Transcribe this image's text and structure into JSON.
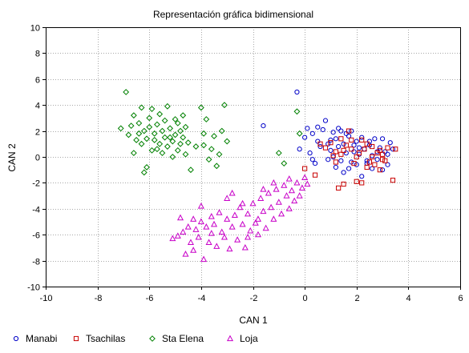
{
  "chart_data": {
    "type": "scatter",
    "title": "Representación gráfica bidimensional",
    "xlabel": "CAN 1",
    "ylabel": "CAN 2",
    "xlim": [
      -10,
      6
    ],
    "ylim": [
      -10,
      10
    ],
    "x_ticks": [
      -10,
      -8,
      -6,
      -4,
      -2,
      0,
      2,
      4,
      6
    ],
    "y_ticks": [
      -10,
      -8,
      -6,
      -4,
      -2,
      0,
      2,
      4,
      6,
      8,
      10
    ],
    "grid": true,
    "legend_position": "bottom",
    "series": [
      {
        "name": "Manabi",
        "marker": "circle",
        "color": "#0000c8",
        "points": [
          [
            -0.3,
            5.0
          ],
          [
            -1.6,
            2.4
          ],
          [
            0.1,
            2.2
          ],
          [
            0.3,
            1.8
          ],
          [
            0.5,
            1.2
          ],
          [
            0.7,
            2.1
          ],
          [
            0.8,
            2.8
          ],
          [
            0.9,
            1.0
          ],
          [
            1.0,
            0.5
          ],
          [
            1.1,
            1.9
          ],
          [
            1.2,
            1.4
          ],
          [
            1.3,
            0.8
          ],
          [
            1.4,
            2.0
          ],
          [
            1.5,
            1.0
          ],
          [
            1.6,
            0.3
          ],
          [
            1.7,
            1.6
          ],
          [
            1.8,
            2.0
          ],
          [
            1.9,
            0.9
          ],
          [
            2.0,
            1.2
          ],
          [
            2.1,
            0.2
          ],
          [
            2.2,
            1.5
          ],
          [
            2.3,
            0.6
          ],
          [
            2.4,
            -0.5
          ],
          [
            2.5,
            0.9
          ],
          [
            2.6,
            0.1
          ],
          [
            2.7,
            1.4
          ],
          [
            2.8,
            -0.2
          ],
          [
            2.9,
            0.7
          ],
          [
            3.0,
            -1.0
          ],
          [
            3.1,
            0.4
          ],
          [
            3.2,
            -0.6
          ],
          [
            3.3,
            1.1
          ],
          [
            3.4,
            0.6
          ],
          [
            0.2,
            0.3
          ],
          [
            0.4,
            -0.5
          ],
          [
            0.6,
            0.8
          ],
          [
            0.9,
            -0.2
          ],
          [
            1.1,
            0.0
          ],
          [
            1.2,
            -0.8
          ],
          [
            1.4,
            -0.3
          ],
          [
            1.5,
            -1.2
          ],
          [
            1.7,
            -0.9
          ],
          [
            1.8,
            -0.4
          ],
          [
            2.0,
            -0.6
          ],
          [
            2.2,
            -1.5
          ],
          [
            2.4,
            -0.3
          ],
          [
            2.6,
            -0.9
          ],
          [
            3.0,
            1.4
          ],
          [
            -0.2,
            0.6
          ],
          [
            0.0,
            1.5
          ],
          [
            0.5,
            2.3
          ],
          [
            1.0,
            1.3
          ],
          [
            1.3,
            2.2
          ],
          [
            1.6,
            1.8
          ],
          [
            1.9,
            0.4
          ],
          [
            2.1,
            0.7
          ],
          [
            2.5,
            1.2
          ],
          [
            2.8,
            0.4
          ],
          [
            3.2,
            0.2
          ],
          [
            0.3,
            -0.2
          ]
        ]
      },
      {
        "name": "Tsachilas",
        "marker": "square",
        "color": "#c80000",
        "points": [
          [
            0.0,
            -0.9
          ],
          [
            0.4,
            -1.4
          ],
          [
            0.8,
            0.7
          ],
          [
            1.0,
            1.1
          ],
          [
            1.2,
            0.4
          ],
          [
            1.3,
            -2.4
          ],
          [
            1.4,
            0.2
          ],
          [
            1.5,
            -2.1
          ],
          [
            1.6,
            0.9
          ],
          [
            1.7,
            2.0
          ],
          [
            1.8,
            1.3
          ],
          [
            1.9,
            -0.5
          ],
          [
            2.0,
            -1.9
          ],
          [
            2.1,
            0.3
          ],
          [
            2.2,
            -2.0
          ],
          [
            2.3,
            0.6
          ],
          [
            2.4,
            1.0
          ],
          [
            2.5,
            -0.4
          ],
          [
            2.6,
            0.8
          ],
          [
            2.7,
            -0.6
          ],
          [
            2.8,
            0.3
          ],
          [
            2.9,
            -1.0
          ],
          [
            3.0,
            0.2
          ],
          [
            3.1,
            -0.3
          ],
          [
            3.2,
            0.7
          ],
          [
            3.4,
            -1.8
          ],
          [
            3.5,
            0.6
          ],
          [
            1.1,
            0.1
          ],
          [
            1.5,
            0.5
          ],
          [
            2.0,
            0.0
          ],
          [
            2.4,
            -0.8
          ],
          [
            1.8,
            0.6
          ],
          [
            2.6,
            0.0
          ],
          [
            1.2,
            -0.4
          ],
          [
            2.2,
            1.3
          ],
          [
            2.9,
            0.5
          ],
          [
            1.4,
            1.4
          ],
          [
            0.6,
            1.0
          ],
          [
            3.0,
            -0.2
          ]
        ]
      },
      {
        "name": "Sta Elena",
        "marker": "diamond",
        "color": "#008000",
        "points": [
          [
            -7.1,
            2.2
          ],
          [
            -6.9,
            5.0
          ],
          [
            -6.8,
            1.7
          ],
          [
            -6.7,
            2.4
          ],
          [
            -6.6,
            3.2
          ],
          [
            -6.5,
            1.3
          ],
          [
            -6.4,
            2.6
          ],
          [
            -6.3,
            3.8
          ],
          [
            -6.3,
            1.0
          ],
          [
            -6.2,
            2.0
          ],
          [
            -6.1,
            1.4
          ],
          [
            -6.0,
            2.3
          ],
          [
            -6.0,
            3.0
          ],
          [
            -5.9,
            0.5
          ],
          [
            -5.8,
            1.8
          ],
          [
            -5.7,
            2.5
          ],
          [
            -5.6,
            3.3
          ],
          [
            -5.6,
            1.0
          ],
          [
            -5.5,
            2.0
          ],
          [
            -5.5,
            0.3
          ],
          [
            -5.4,
            2.8
          ],
          [
            -5.4,
            1.5
          ],
          [
            -5.3,
            3.9
          ],
          [
            -5.3,
            0.8
          ],
          [
            -5.2,
            2.2
          ],
          [
            -5.1,
            1.2
          ],
          [
            -5.1,
            0.0
          ],
          [
            -5.0,
            1.7
          ],
          [
            -4.9,
            2.6
          ],
          [
            -4.9,
            0.5
          ],
          [
            -4.8,
            1.0
          ],
          [
            -4.8,
            2.0
          ],
          [
            -4.7,
            1.5
          ],
          [
            -4.6,
            0.2
          ],
          [
            -4.5,
            1.1
          ],
          [
            -4.4,
            -1.0
          ],
          [
            -4.2,
            0.8
          ],
          [
            -4.0,
            3.8
          ],
          [
            -3.9,
            1.8
          ],
          [
            -3.8,
            2.9
          ],
          [
            -3.7,
            -0.2
          ],
          [
            -3.6,
            0.6
          ],
          [
            -3.5,
            1.6
          ],
          [
            -3.4,
            -0.7
          ],
          [
            -3.3,
            0.2
          ],
          [
            -3.2,
            2.0
          ],
          [
            -3.1,
            4.0
          ],
          [
            -3.0,
            1.2
          ],
          [
            -5.9,
            3.7
          ],
          [
            -6.1,
            -0.8
          ],
          [
            -6.2,
            -1.2
          ],
          [
            -5.7,
            0.6
          ],
          [
            -5.8,
            1.3
          ],
          [
            -6.4,
            1.8
          ],
          [
            -5.0,
            2.9
          ],
          [
            -4.7,
            3.2
          ],
          [
            -4.6,
            2.3
          ],
          [
            -6.6,
            0.3
          ],
          [
            -5.2,
            1.5
          ],
          [
            -3.9,
            0.9
          ],
          [
            -0.3,
            3.5
          ],
          [
            -0.2,
            1.8
          ],
          [
            -1.0,
            0.3
          ],
          [
            -0.8,
            -0.5
          ]
        ]
      },
      {
        "name": "Loja",
        "marker": "triangle",
        "color": "#c800c8",
        "points": [
          [
            -5.1,
            -6.3
          ],
          [
            -4.9,
            -6.1
          ],
          [
            -4.7,
            -5.8
          ],
          [
            -4.6,
            -7.5
          ],
          [
            -4.5,
            -5.4
          ],
          [
            -4.4,
            -6.6
          ],
          [
            -4.3,
            -4.8
          ],
          [
            -4.3,
            -7.2
          ],
          [
            -4.2,
            -5.6
          ],
          [
            -4.1,
            -6.2
          ],
          [
            -4.0,
            -3.8
          ],
          [
            -4.0,
            -5.0
          ],
          [
            -3.9,
            -7.9
          ],
          [
            -3.8,
            -5.4
          ],
          [
            -3.7,
            -6.6
          ],
          [
            -3.6,
            -4.6
          ],
          [
            -3.5,
            -5.2
          ],
          [
            -3.4,
            -6.9
          ],
          [
            -3.3,
            -4.3
          ],
          [
            -3.2,
            -5.8
          ],
          [
            -3.1,
            -6.2
          ],
          [
            -3.0,
            -4.8
          ],
          [
            -2.9,
            -7.1
          ],
          [
            -2.8,
            -5.4
          ],
          [
            -2.7,
            -4.5
          ],
          [
            -2.6,
            -6.4
          ],
          [
            -2.5,
            -3.9
          ],
          [
            -2.4,
            -5.2
          ],
          [
            -2.3,
            -7.0
          ],
          [
            -2.2,
            -4.4
          ],
          [
            -2.1,
            -5.7
          ],
          [
            -2.0,
            -3.6
          ],
          [
            -1.9,
            -5.1
          ],
          [
            -1.8,
            -6.0
          ],
          [
            -1.7,
            -3.2
          ],
          [
            -1.6,
            -4.2
          ],
          [
            -1.5,
            -5.5
          ],
          [
            -1.4,
            -2.8
          ],
          [
            -1.3,
            -3.9
          ],
          [
            -1.2,
            -4.8
          ],
          [
            -1.1,
            -2.5
          ],
          [
            -1.0,
            -3.5
          ],
          [
            -0.9,
            -4.4
          ],
          [
            -0.8,
            -2.2
          ],
          [
            -0.7,
            -3.0
          ],
          [
            -0.6,
            -4.0
          ],
          [
            -0.5,
            -2.6
          ],
          [
            -0.4,
            -3.4
          ],
          [
            -0.3,
            -2.0
          ],
          [
            -0.2,
            -3.0
          ],
          [
            -0.1,
            -2.4
          ],
          [
            0.0,
            -1.6
          ],
          [
            0.1,
            -2.1
          ],
          [
            -2.8,
            -2.8
          ],
          [
            -2.4,
            -3.6
          ],
          [
            -1.6,
            -2.5
          ],
          [
            -2.2,
            -6.2
          ],
          [
            -3.6,
            -5.9
          ],
          [
            -4.8,
            -4.7
          ],
          [
            -1.2,
            -2.0
          ],
          [
            -1.8,
            -4.8
          ],
          [
            -3.0,
            -3.2
          ],
          [
            -0.6,
            -1.7
          ]
        ]
      }
    ]
  }
}
